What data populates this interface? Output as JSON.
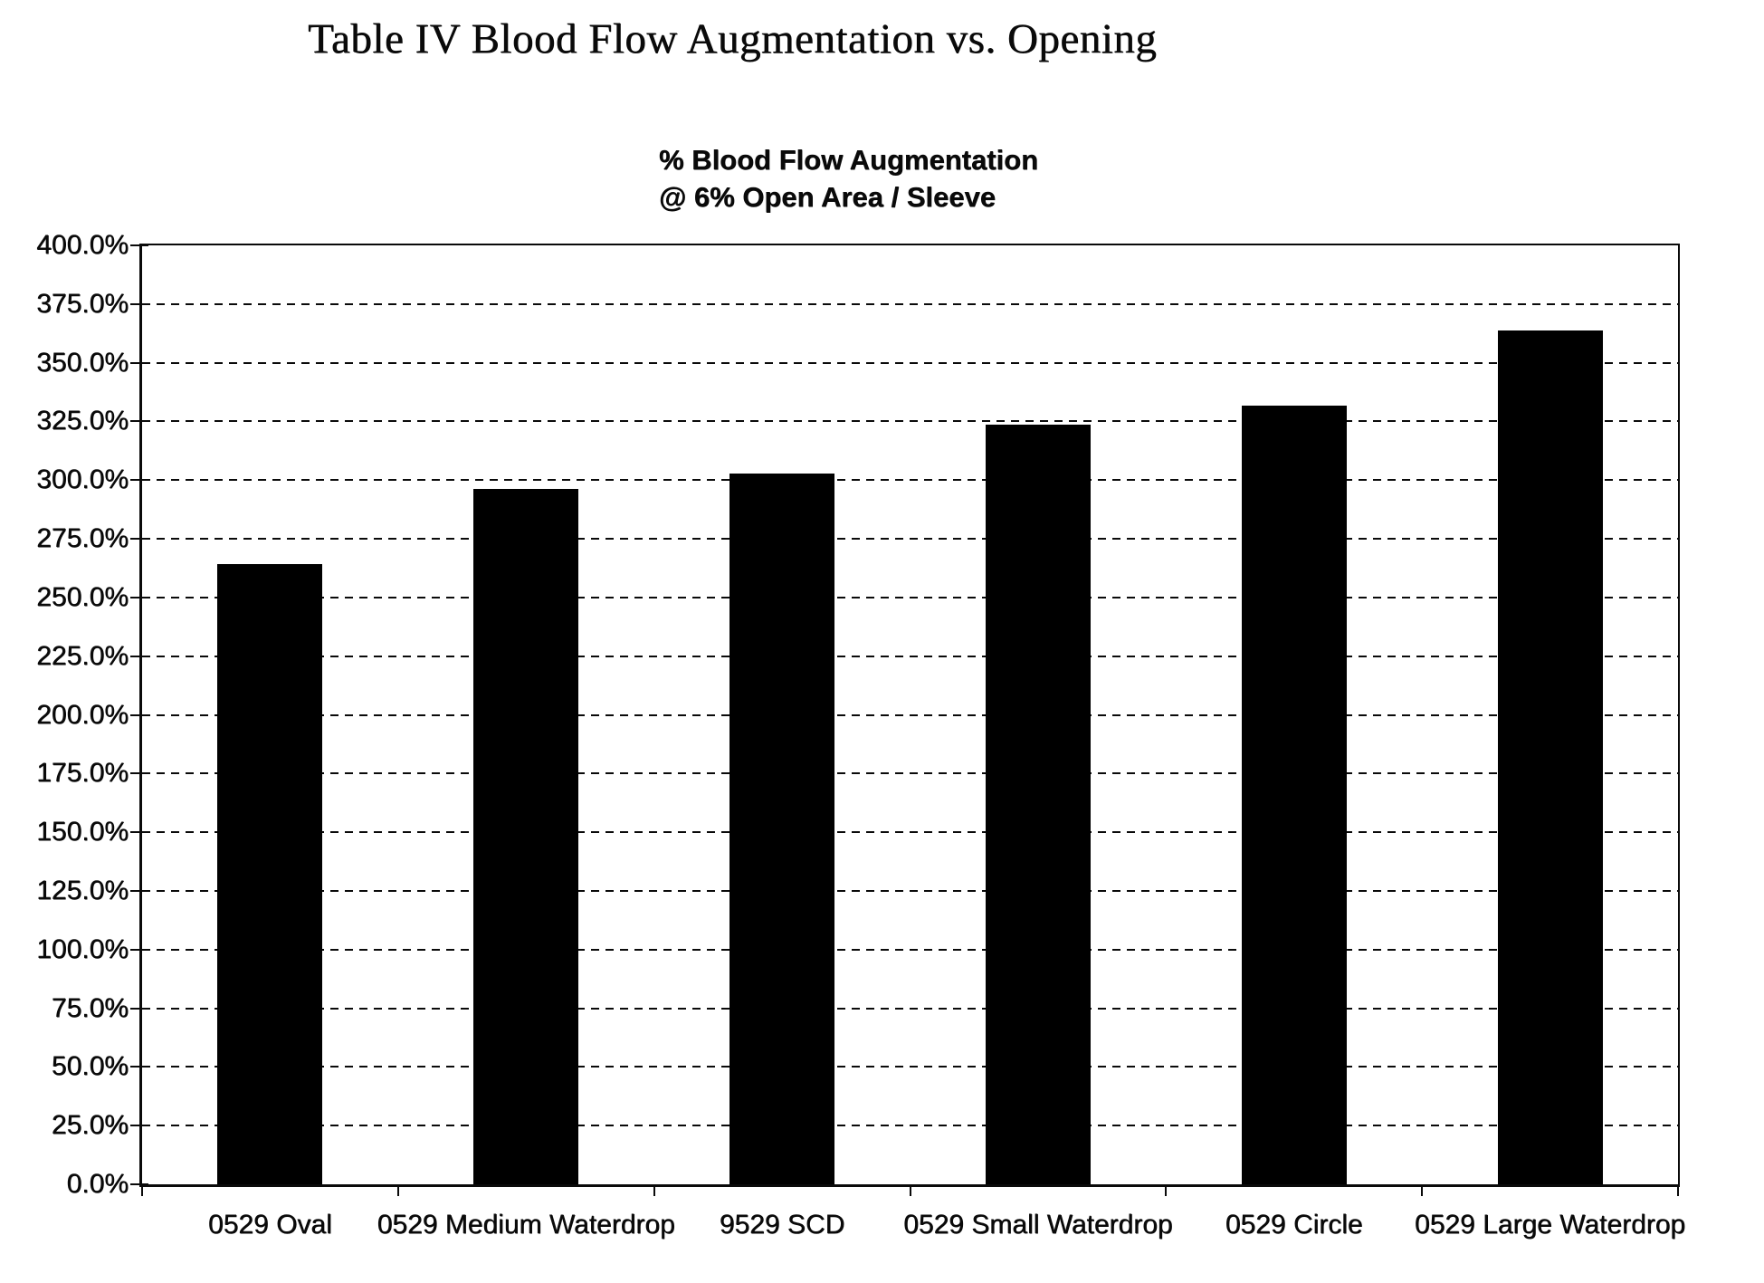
{
  "page": {
    "title": "Table IV Blood Flow Augmentation vs. Opening"
  },
  "chart_data": {
    "type": "bar",
    "title_lines": [
      "% Blood Flow Augmentation",
      "@ 6% Open Area / Sleeve"
    ],
    "categories": [
      "0529 Oval",
      "0529 Medium Waterdrop",
      "9529 SCD",
      "0529 Small Waterdrop",
      "0529 Circle",
      "0529 Large Waterdrop"
    ],
    "values": [
      264.4,
      296.3,
      302.9,
      323.5,
      331.8,
      363.8
    ],
    "unit": "%",
    "ylim": [
      0,
      400
    ],
    "ytick_step": 25,
    "ytick_labels": [
      "0.0%",
      "25.0%",
      "50.0%",
      "75.0%",
      "100.0%",
      "125.0%",
      "150.0%",
      "175.0%",
      "200.0%",
      "225.0%",
      "250.0%",
      "275.0%",
      "300.0%",
      "325.0%",
      "350.0%",
      "375.0%",
      "400.0%"
    ],
    "xlabel": "",
    "ylabel": "",
    "grid": "horizontal-dashed",
    "legend": "none",
    "bar_color": "#000000",
    "background_color": "#ffffff"
  }
}
